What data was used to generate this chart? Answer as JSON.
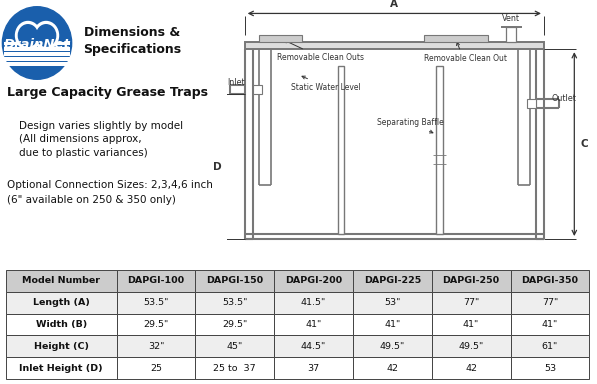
{
  "title_main": "Dimensions &\nSpecifications",
  "subtitle": "Large Capacity Grease Traps",
  "note1": "Design varies slightly by model\n(All dimensions approx,\ndue to plastic variances)",
  "note2": "Optional Connection Sizes: 2,3,4,6 inch\n(6\" available on 250 & 350 only)",
  "table_headers": [
    "Model Number",
    "DAPGI-100",
    "DAPGI-150",
    "DAPGI-200",
    "DAPGI-225",
    "DAPGI-250",
    "DAPGI-350"
  ],
  "table_rows": [
    [
      "Length (A)",
      "53.5\"",
      "53.5\"",
      "41.5\"",
      "53\"",
      "77\"",
      "77\""
    ],
    [
      "Width (B)",
      "29.5\"",
      "29.5\"",
      "41\"",
      "41\"",
      "41\"",
      "41\""
    ],
    [
      "Height (C)",
      "32\"",
      "45\"",
      "44.5\"",
      "49.5\"",
      "49.5\"",
      "61\""
    ],
    [
      "Inlet Height (D)",
      "25",
      "25 to  37",
      "37",
      "42",
      "42",
      "53"
    ]
  ],
  "bg_color": "#ffffff",
  "header_bg": "#cccccc",
  "row_bg_odd": "#eeeeee",
  "row_bg_even": "#ffffff",
  "border_color": "#444444",
  "text_color": "#111111",
  "diagram_color": "#777777",
  "logo_blue": "#1a5fac",
  "logo_blue_dark": "#1a4f8c"
}
